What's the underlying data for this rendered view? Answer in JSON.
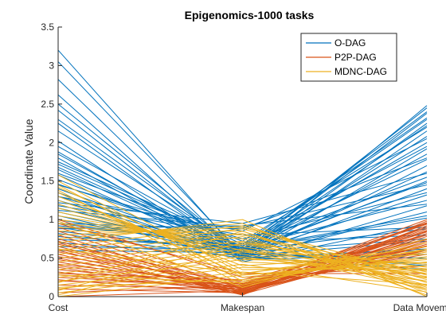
{
  "chart_data": {
    "type": "line",
    "subtype": "parallel-coordinates",
    "title": "Epigenomics-1000 tasks",
    "xlabel": "",
    "ylabel": "Coordinate Value",
    "categories": [
      "Cost",
      "Makespan",
      "Data Movement"
    ],
    "ylim": [
      0,
      3.5
    ],
    "yticks": [
      0,
      0.5,
      1,
      1.5,
      2,
      2.5,
      3,
      3.5
    ],
    "ytick_labels": [
      "0",
      "0.5",
      "1",
      "1.5",
      "2",
      "2.5",
      "3",
      "3.5"
    ],
    "grid": false,
    "legend_position": "top-right",
    "series": [
      {
        "name": "O-DAG",
        "color": "#0072BD",
        "lines": [
          [
            3.2,
            0.52,
            0.35
          ],
          [
            3.05,
            0.55,
            0.5
          ],
          [
            2.82,
            0.5,
            0.62
          ],
          [
            2.62,
            0.48,
            0.55
          ],
          [
            2.42,
            0.53,
            0.72
          ],
          [
            2.3,
            0.58,
            0.4
          ],
          [
            2.15,
            0.6,
            0.88
          ],
          [
            2.02,
            0.45,
            0.95
          ],
          [
            1.95,
            0.62,
            1.05
          ],
          [
            1.88,
            0.5,
            1.1
          ],
          [
            1.8,
            0.47,
            1.18
          ],
          [
            1.72,
            0.64,
            1.25
          ],
          [
            1.65,
            0.55,
            1.32
          ],
          [
            1.58,
            0.51,
            1.4
          ],
          [
            1.52,
            0.6,
            1.48
          ],
          [
            1.46,
            0.66,
            1.55
          ],
          [
            1.4,
            0.54,
            1.62
          ],
          [
            1.35,
            0.49,
            1.7
          ],
          [
            1.3,
            0.63,
            1.78
          ],
          [
            1.25,
            0.56,
            1.85
          ],
          [
            1.2,
            0.5,
            1.92
          ],
          [
            1.15,
            0.61,
            2.0
          ],
          [
            1.1,
            0.57,
            2.08
          ],
          [
            1.05,
            0.52,
            2.15
          ],
          [
            1.0,
            0.6,
            2.22
          ],
          [
            0.95,
            0.65,
            2.3
          ],
          [
            0.9,
            0.55,
            2.38
          ],
          [
            0.85,
            0.58,
            2.45
          ],
          [
            0.82,
            0.5,
            2.48
          ],
          [
            0.78,
            0.62,
            2.4
          ],
          [
            0.74,
            0.68,
            2.32
          ],
          [
            0.7,
            0.53,
            2.25
          ],
          [
            1.22,
            0.95,
            1.6
          ],
          [
            1.12,
            0.9,
            1.45
          ],
          [
            0.95,
            0.88,
            1.8
          ],
          [
            1.3,
            0.85,
            2.05
          ],
          [
            0.88,
            0.92,
            1.2
          ],
          [
            1.18,
            0.8,
            0.9
          ],
          [
            1.45,
            0.75,
            1.35
          ],
          [
            0.92,
            0.7,
            0.8
          ],
          [
            1.6,
            0.72,
            2.2
          ],
          [
            1.75,
            0.68,
            1.95
          ],
          [
            2.5,
            0.56,
            0.42
          ],
          [
            2.25,
            0.51,
            0.6
          ],
          [
            1.85,
            0.55,
            0.5
          ],
          [
            1.68,
            0.58,
            0.75
          ],
          [
            0.65,
            0.61,
            1.02
          ],
          [
            0.6,
            0.57,
            1.5
          ]
        ]
      },
      {
        "name": "P2P-DAG",
        "color": "#D95319",
        "lines": [
          [
            0.9,
            0.15,
            0.95
          ],
          [
            0.85,
            0.1,
            0.9
          ],
          [
            0.8,
            0.05,
            0.85
          ],
          [
            0.75,
            0.12,
            1.0
          ],
          [
            0.72,
            0.08,
            0.8
          ],
          [
            0.7,
            0.03,
            0.92
          ],
          [
            0.68,
            0.18,
            0.75
          ],
          [
            0.65,
            0.06,
            0.88
          ],
          [
            0.62,
            0.1,
            0.7
          ],
          [
            0.6,
            0.02,
            0.98
          ],
          [
            0.58,
            0.14,
            0.65
          ],
          [
            0.55,
            0.04,
            0.82
          ],
          [
            0.52,
            0.2,
            0.6
          ],
          [
            0.5,
            0.07,
            0.78
          ],
          [
            0.48,
            0.11,
            0.9
          ],
          [
            0.45,
            0.05,
            0.72
          ],
          [
            0.42,
            0.16,
            0.55
          ],
          [
            0.4,
            0.09,
            0.86
          ],
          [
            0.38,
            0.03,
            0.68
          ],
          [
            0.35,
            0.13,
            0.94
          ],
          [
            0.32,
            0.06,
            0.62
          ],
          [
            0.3,
            0.22,
            0.8
          ],
          [
            0.28,
            0.08,
            0.74
          ],
          [
            0.25,
            0.12,
            0.58
          ],
          [
            0.22,
            0.04,
            0.9
          ],
          [
            0.2,
            0.17,
            0.66
          ],
          [
            0.15,
            0.1,
            0.84
          ],
          [
            0.1,
            0.05,
            0.7
          ],
          [
            0.05,
            0.14,
            0.96
          ],
          [
            0.0,
            0.08,
            0.6
          ],
          [
            1.0,
            0.25,
            0.4
          ],
          [
            0.95,
            0.3,
            0.3
          ]
        ]
      },
      {
        "name": "MDNC-DAG",
        "color": "#EDB120",
        "lines": [
          [
            1.58,
            0.3,
            0.6
          ],
          [
            1.5,
            0.25,
            0.5
          ],
          [
            1.42,
            0.35,
            0.4
          ],
          [
            1.35,
            0.28,
            0.45
          ],
          [
            1.3,
            0.4,
            0.55
          ],
          [
            1.25,
            0.45,
            0.35
          ],
          [
            1.2,
            0.5,
            0.3
          ],
          [
            1.15,
            0.55,
            0.25
          ],
          [
            1.1,
            0.6,
            0.42
          ],
          [
            1.05,
            0.65,
            0.2
          ],
          [
            1.0,
            0.7,
            0.38
          ],
          [
            0.95,
            0.75,
            0.15
          ],
          [
            0.9,
            0.8,
            0.32
          ],
          [
            0.85,
            0.85,
            0.1
          ],
          [
            0.8,
            0.9,
            0.28
          ],
          [
            0.75,
            0.95,
            0.05
          ],
          [
            0.7,
            1.0,
            0.0
          ],
          [
            0.65,
            0.92,
            0.18
          ],
          [
            0.6,
            0.88,
            0.22
          ],
          [
            0.55,
            0.82,
            0.12
          ],
          [
            0.5,
            0.78,
            0.08
          ],
          [
            0.45,
            0.72,
            0.3
          ],
          [
            0.4,
            0.68,
            0.26
          ],
          [
            0.35,
            0.62,
            0.14
          ],
          [
            0.3,
            0.58,
            0.36
          ],
          [
            0.25,
            0.52,
            0.2
          ],
          [
            0.2,
            0.48,
            0.44
          ],
          [
            0.15,
            0.42,
            0.06
          ],
          [
            0.1,
            0.38,
            0.34
          ],
          [
            0.05,
            0.32,
            0.16
          ],
          [
            0.0,
            0.28,
            0.48
          ],
          [
            0.02,
            0.6,
            0.1
          ],
          [
            0.08,
            0.7,
            0.24
          ],
          [
            0.18,
            0.85,
            0.02
          ],
          [
            0.12,
            0.22,
            0.52
          ],
          [
            0.28,
            0.18,
            0.58
          ],
          [
            1.45,
            0.2,
            0.62
          ],
          [
            1.38,
            0.15,
            0.7
          ],
          [
            0.98,
            0.12,
            0.75
          ],
          [
            0.62,
            0.3,
            0.65
          ]
        ]
      }
    ]
  }
}
